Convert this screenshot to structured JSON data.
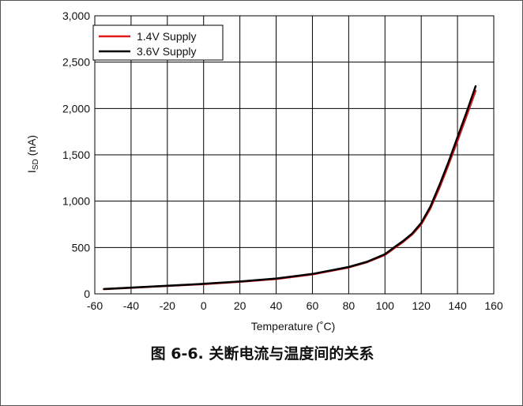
{
  "caption": "图 6-6. 关断电流与温度间的关系",
  "chart_data": {
    "type": "line",
    "xlabel": "Temperature (˚C)",
    "ylabel_main": "I",
    "ylabel_sub": "SD",
    "ylabel_unit": " (nA)",
    "xlim": [
      -60,
      160
    ],
    "ylim": [
      0,
      3000
    ],
    "x_ticks": [
      -60,
      -40,
      -20,
      0,
      20,
      40,
      60,
      80,
      100,
      120,
      140,
      160
    ],
    "y_ticks": [
      0,
      500,
      1000,
      1500,
      2000,
      2500,
      3000
    ],
    "x_tick_labels": [
      "-60",
      "-40",
      "-20",
      "0",
      "20",
      "40",
      "60",
      "80",
      "100",
      "120",
      "140",
      "160"
    ],
    "y_tick_labels": [
      "0",
      "500",
      "1,000",
      "1,500",
      "2,000",
      "2,500",
      "3,000"
    ],
    "grid": true,
    "legend_position": "top-left",
    "series": [
      {
        "name": "1.4V Supply",
        "color": "#e31a1c",
        "x": [
          -55,
          -40,
          -20,
          0,
          20,
          40,
          60,
          80,
          90,
          100,
          105,
          110,
          115,
          120,
          125,
          130,
          135,
          140,
          145,
          150
        ],
        "y": [
          50,
          65,
          85,
          105,
          130,
          160,
          210,
          285,
          340,
          420,
          490,
          560,
          640,
          750,
          920,
          1140,
          1390,
          1650,
          1920,
          2190
        ]
      },
      {
        "name": "3.6V Supply",
        "color": "#000000",
        "x": [
          -55,
          -40,
          -20,
          0,
          20,
          40,
          60,
          80,
          90,
          100,
          105,
          110,
          115,
          120,
          125,
          130,
          135,
          140,
          145,
          150
        ],
        "y": [
          52,
          67,
          88,
          108,
          133,
          165,
          215,
          290,
          345,
          428,
          500,
          570,
          650,
          765,
          940,
          1170,
          1420,
          1690,
          1960,
          2240
        ]
      }
    ]
  }
}
